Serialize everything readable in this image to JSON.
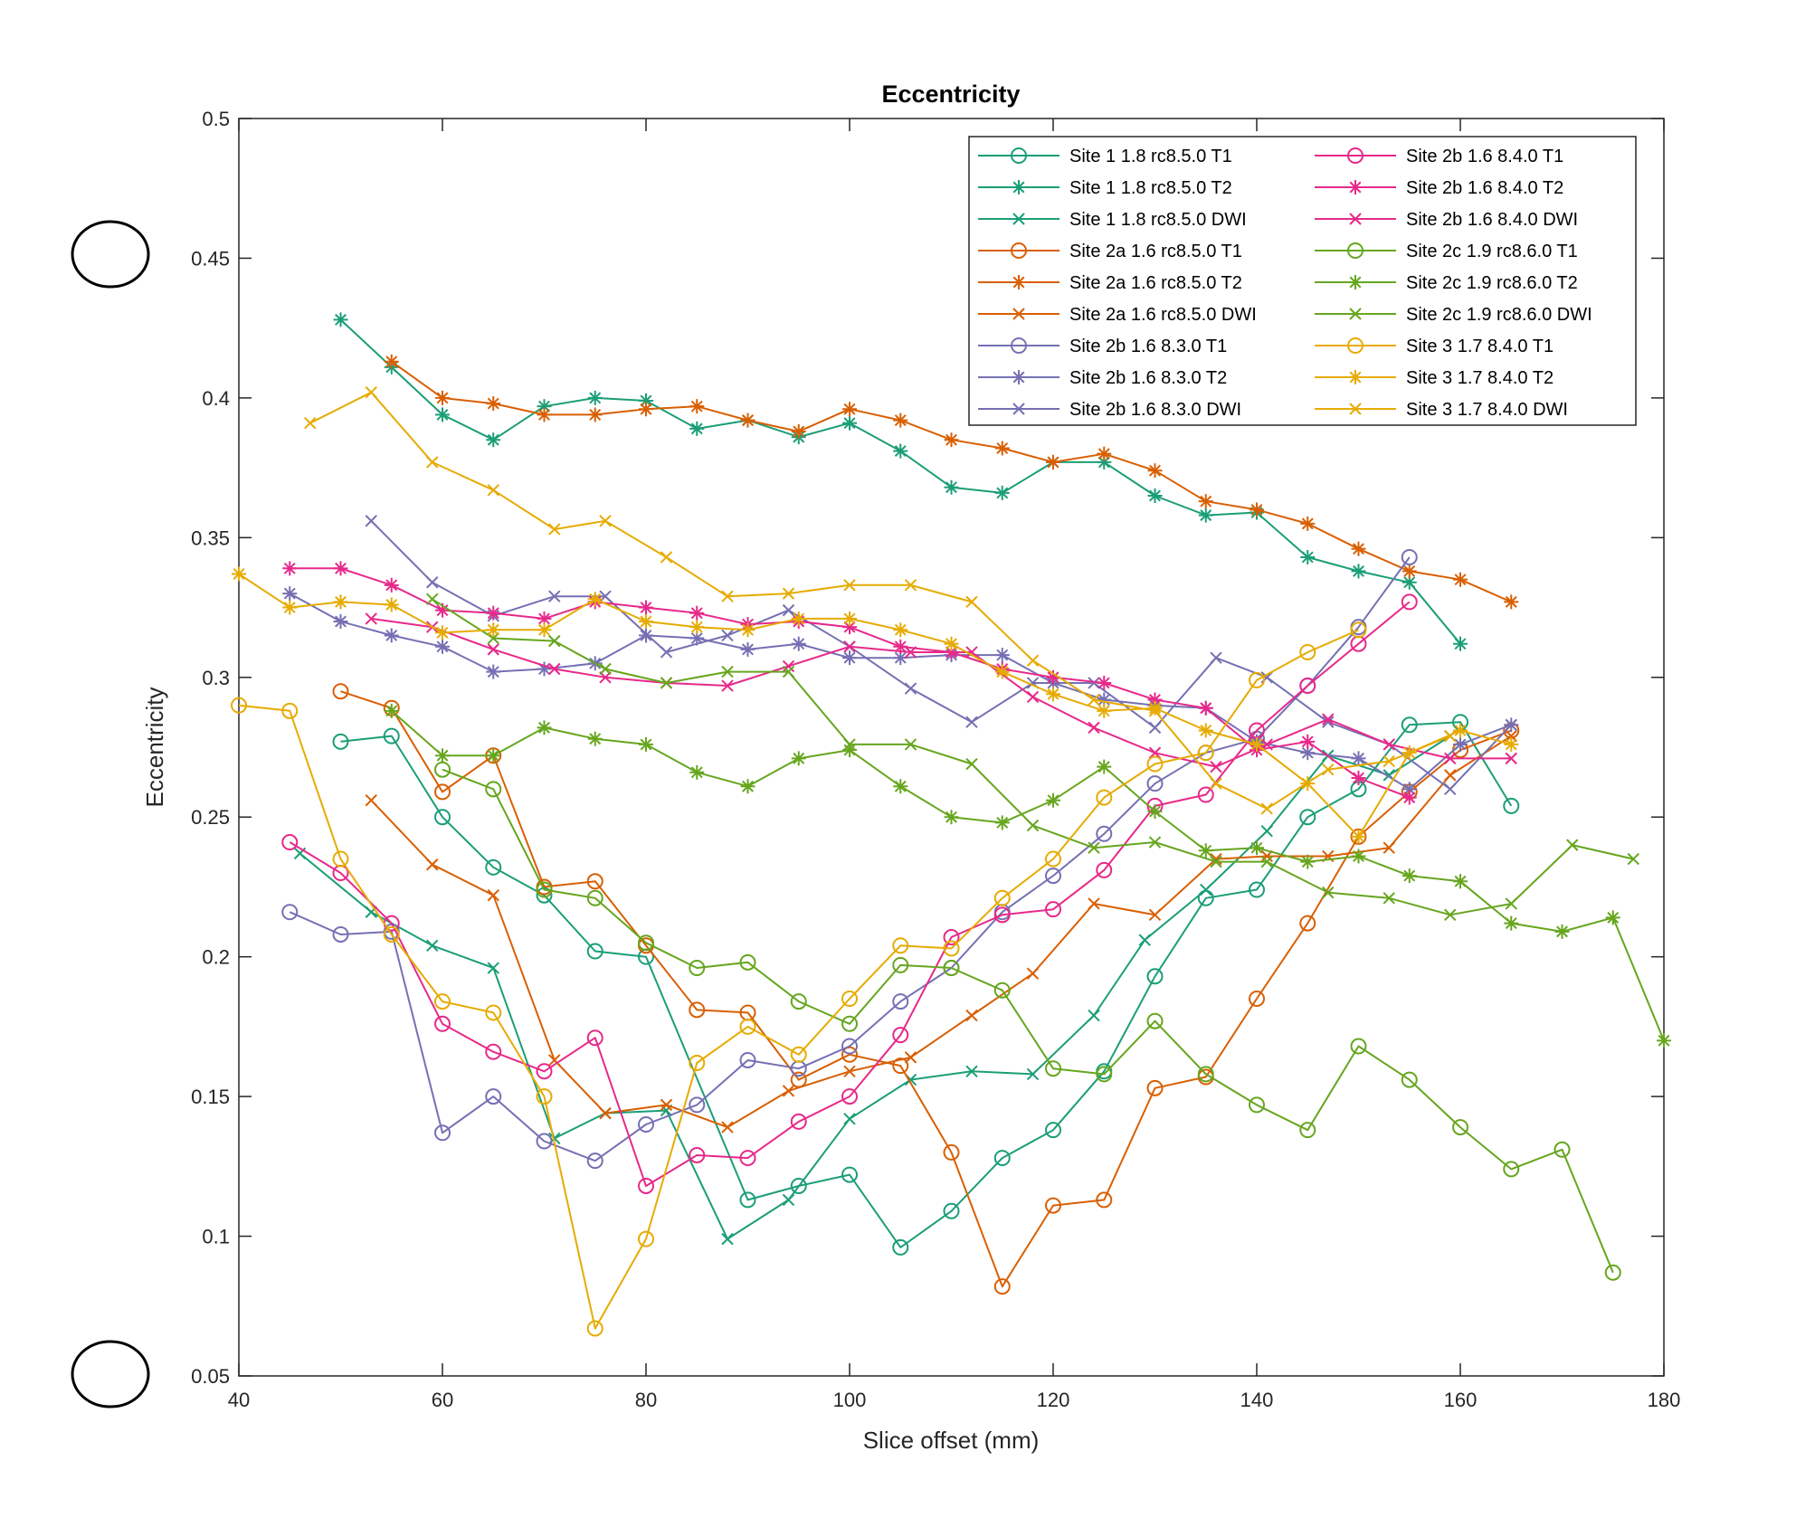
{
  "chart_data": {
    "type": "line",
    "title": "Eccentricity",
    "xlabel": "Slice offset (mm)",
    "ylabel": "Eccentricity",
    "xlim": [
      40,
      180
    ],
    "ylim": [
      0.05,
      0.5
    ],
    "xticks": [
      40,
      60,
      80,
      100,
      120,
      140,
      160,
      180
    ],
    "yticks": [
      0.05,
      0.1,
      0.15,
      0.2,
      0.25,
      0.3,
      0.35,
      0.4,
      0.45,
      0.5
    ],
    "xtick_labels": [
      "40",
      "60",
      "80",
      "100",
      "120",
      "140",
      "160",
      "180"
    ],
    "ytick_labels": [
      "0.05",
      "0.1",
      "0.15",
      "0.2",
      "0.25",
      "0.3",
      "0.35",
      "0.4",
      "0.45",
      "0.5"
    ],
    "grid": false,
    "legend_position": "top-right",
    "series": [
      {
        "name": "Site 1 1.8 rc8.5.0 T1",
        "color": "#1b9e77",
        "marker": "o",
        "x": [
          50,
          55,
          60,
          65,
          70,
          75,
          80,
          90,
          95,
          100,
          105,
          110,
          115,
          120,
          125,
          130,
          135,
          140,
          145,
          150,
          155,
          160,
          165
        ],
        "y": [
          0.277,
          0.279,
          0.25,
          0.232,
          0.222,
          0.202,
          0.2,
          0.113,
          0.118,
          0.122,
          0.096,
          0.109,
          0.128,
          0.138,
          0.159,
          0.193,
          0.221,
          0.224,
          0.25,
          0.26,
          0.283,
          0.284,
          0.254
        ]
      },
      {
        "name": "Site 1 1.8 rc8.5.0 T2",
        "color": "#1b9e77",
        "marker": "*",
        "x": [
          50,
          55,
          60,
          65,
          70,
          75,
          80,
          85,
          90,
          95,
          100,
          105,
          110,
          115,
          120,
          125,
          130,
          135,
          140,
          145,
          150,
          155,
          160
        ],
        "y": [
          0.428,
          0.411,
          0.394,
          0.385,
          0.397,
          0.4,
          0.399,
          0.389,
          0.392,
          0.386,
          0.391,
          0.381,
          0.368,
          0.366,
          0.377,
          0.377,
          0.365,
          0.358,
          0.359,
          0.343,
          0.338,
          0.334,
          0.312
        ]
      },
      {
        "name": "Site 1 1.8 rc8.5.0 DWI",
        "color": "#1b9e77",
        "marker": "x",
        "x": [
          46,
          53,
          59,
          65,
          71,
          76,
          82,
          88,
          94,
          100,
          106,
          112,
          118,
          124,
          129,
          135,
          141,
          147,
          153,
          159
        ],
        "y": [
          0.237,
          0.216,
          0.204,
          0.196,
          0.135,
          0.144,
          0.145,
          0.099,
          0.113,
          0.142,
          0.156,
          0.159,
          0.158,
          0.179,
          0.206,
          0.224,
          0.245,
          0.272,
          0.265,
          0.279
        ]
      },
      {
        "name": "Site 2a 1.6 rc8.5.0 T1",
        "color": "#d95f02",
        "marker": "o",
        "x": [
          50,
          55,
          60,
          65,
          70,
          75,
          80,
          85,
          90,
          95,
          100,
          105,
          110,
          115,
          120,
          125,
          130,
          135,
          140,
          145,
          150,
          155,
          160,
          165
        ],
        "y": [
          0.295,
          0.289,
          0.259,
          0.272,
          0.225,
          0.227,
          0.204,
          0.181,
          0.18,
          0.156,
          0.165,
          0.161,
          0.13,
          0.082,
          0.111,
          0.113,
          0.153,
          0.157,
          0.185,
          0.212,
          0.243,
          0.259,
          0.274,
          0.281
        ]
      },
      {
        "name": "Site 2a 1.6 rc8.5.0 T2",
        "color": "#d95f02",
        "marker": "*",
        "x": [
          55,
          60,
          65,
          70,
          75,
          80,
          85,
          90,
          95,
          100,
          105,
          110,
          115,
          120,
          125,
          130,
          135,
          140,
          145,
          150,
          155,
          160,
          165
        ],
        "y": [
          0.413,
          0.4,
          0.398,
          0.394,
          0.394,
          0.396,
          0.397,
          0.392,
          0.388,
          0.396,
          0.392,
          0.385,
          0.382,
          0.377,
          0.38,
          0.374,
          0.363,
          0.36,
          0.355,
          0.346,
          0.338,
          0.335,
          0.327
        ]
      },
      {
        "name": "Site 2a 1.6 rc8.5.0 DWI",
        "color": "#d95f02",
        "marker": "x",
        "x": [
          53,
          59,
          65,
          71,
          76,
          82,
          88,
          94,
          100,
          106,
          112,
          118,
          124,
          130,
          136,
          141,
          147,
          153,
          159,
          165
        ],
        "y": [
          0.256,
          0.233,
          0.222,
          0.163,
          0.144,
          0.147,
          0.139,
          0.152,
          0.159,
          0.164,
          0.179,
          0.194,
          0.219,
          0.215,
          0.235,
          0.236,
          0.236,
          0.239,
          0.265,
          0.279
        ]
      },
      {
        "name": "Site 2b 1.6 8.3.0 T1",
        "color": "#7570b3",
        "marker": "o",
        "x": [
          45,
          50,
          55,
          60,
          65,
          70,
          75,
          80,
          85,
          90,
          95,
          100,
          105,
          110,
          115,
          120,
          125,
          130,
          135,
          140,
          145,
          150,
          155
        ],
        "y": [
          0.216,
          0.208,
          0.209,
          0.137,
          0.15,
          0.134,
          0.127,
          0.14,
          0.147,
          0.163,
          0.16,
          0.168,
          0.184,
          0.196,
          0.216,
          0.229,
          0.244,
          0.262,
          0.273,
          0.278,
          0.297,
          0.318,
          0.343
        ]
      },
      {
        "name": "Site 2b 1.6 8.3.0 T2",
        "color": "#7570b3",
        "marker": "*",
        "x": [
          45,
          50,
          55,
          60,
          65,
          70,
          75,
          80,
          85,
          90,
          95,
          100,
          105,
          110,
          115,
          120,
          125,
          130,
          135,
          140,
          145,
          150,
          155,
          160,
          165
        ],
        "y": [
          0.33,
          0.32,
          0.315,
          0.311,
          0.302,
          0.303,
          0.305,
          0.315,
          0.314,
          0.31,
          0.312,
          0.307,
          0.307,
          0.308,
          0.308,
          0.298,
          0.292,
          0.29,
          0.289,
          0.277,
          0.273,
          0.271,
          0.26,
          0.276,
          0.283
        ]
      },
      {
        "name": "Site 2b 1.6 8.3.0 DWI",
        "color": "#7570b3",
        "marker": "x",
        "x": [
          53,
          59,
          65,
          71,
          76,
          82,
          88,
          94,
          100,
          106,
          112,
          118,
          124,
          130,
          136,
          141,
          147,
          153,
          159,
          165
        ],
        "y": [
          0.356,
          0.334,
          0.322,
          0.329,
          0.329,
          0.309,
          0.315,
          0.324,
          0.311,
          0.296,
          0.284,
          0.298,
          0.298,
          0.282,
          0.307,
          0.3,
          0.284,
          0.276,
          0.26,
          0.283
        ]
      },
      {
        "name": "Site 2b 1.6 8.4.0 T1",
        "color": "#e7298a",
        "marker": "o",
        "x": [
          45,
          50,
          55,
          60,
          65,
          70,
          75,
          80,
          85,
          90,
          95,
          100,
          105,
          110,
          115,
          120,
          125,
          130,
          135,
          140,
          145,
          150,
          155
        ],
        "y": [
          0.241,
          0.23,
          0.212,
          0.176,
          0.166,
          0.159,
          0.171,
          0.118,
          0.129,
          0.128,
          0.141,
          0.15,
          0.172,
          0.207,
          0.215,
          0.217,
          0.231,
          0.254,
          0.258,
          0.281,
          0.297,
          0.312,
          0.327
        ]
      },
      {
        "name": "Site 2b 1.6 8.4.0 T2",
        "color": "#e7298a",
        "marker": "*",
        "x": [
          45,
          50,
          55,
          60,
          65,
          70,
          75,
          80,
          85,
          90,
          95,
          100,
          105,
          110,
          115,
          120,
          125,
          130,
          135,
          140,
          145,
          150,
          155
        ],
        "y": [
          0.339,
          0.339,
          0.333,
          0.324,
          0.323,
          0.321,
          0.327,
          0.325,
          0.323,
          0.319,
          0.32,
          0.318,
          0.311,
          0.309,
          0.303,
          0.3,
          0.298,
          0.292,
          0.289,
          0.274,
          0.277,
          0.264,
          0.257
        ]
      },
      {
        "name": "Site 2b 1.6 8.4.0 DWI",
        "color": "#e7298a",
        "marker": "x",
        "x": [
          53,
          59,
          65,
          71,
          76,
          82,
          88,
          94,
          100,
          106,
          112,
          118,
          124,
          130,
          136,
          141,
          147,
          153,
          159,
          165
        ],
        "y": [
          0.321,
          0.318,
          0.31,
          0.303,
          0.3,
          0.298,
          0.297,
          0.304,
          0.311,
          0.309,
          0.309,
          0.293,
          0.282,
          0.273,
          0.268,
          0.276,
          0.285,
          0.276,
          0.271,
          0.271
        ]
      },
      {
        "name": "Site 2c 1.9 rc8.6.0 T1",
        "color": "#66a61e",
        "marker": "o",
        "x": [
          60,
          65,
          70,
          75,
          80,
          85,
          90,
          95,
          100,
          105,
          110,
          115,
          120,
          125,
          130,
          135,
          140,
          145,
          150,
          155,
          160,
          165,
          170,
          175
        ],
        "y": [
          0.267,
          0.26,
          0.224,
          0.221,
          0.205,
          0.196,
          0.198,
          0.184,
          0.176,
          0.197,
          0.196,
          0.188,
          0.16,
          0.158,
          0.177,
          0.158,
          0.147,
          0.138,
          0.168,
          0.156,
          0.139,
          0.124,
          0.131,
          0.087
        ]
      },
      {
        "name": "Site 2c 1.9 rc8.6.0 T2",
        "color": "#66a61e",
        "marker": "*",
        "x": [
          55,
          60,
          65,
          70,
          75,
          80,
          85,
          90,
          95,
          100,
          105,
          110,
          115,
          120,
          125,
          130,
          135,
          140,
          145,
          150,
          155,
          160,
          165,
          170,
          175,
          180
        ],
        "y": [
          0.288,
          0.272,
          0.272,
          0.282,
          0.278,
          0.276,
          0.266,
          0.261,
          0.271,
          0.274,
          0.261,
          0.25,
          0.248,
          0.256,
          0.268,
          0.252,
          0.238,
          0.239,
          0.234,
          0.236,
          0.229,
          0.227,
          0.212,
          0.209,
          0.214,
          0.17
        ]
      },
      {
        "name": "Site 2c 1.9 rc8.6.0 DWI",
        "color": "#66a61e",
        "marker": "x",
        "x": [
          59,
          65,
          71,
          76,
          82,
          88,
          94,
          100,
          106,
          112,
          118,
          124,
          130,
          136,
          141,
          147,
          153,
          159,
          165,
          171,
          177
        ],
        "y": [
          0.328,
          0.314,
          0.313,
          0.303,
          0.298,
          0.302,
          0.302,
          0.276,
          0.276,
          0.269,
          0.247,
          0.239,
          0.241,
          0.234,
          0.234,
          0.223,
          0.221,
          0.215,
          0.219,
          0.24,
          0.235
        ]
      },
      {
        "name": "Site 3 1.7 8.4.0 T1",
        "color": "#e6ab02",
        "marker": "o",
        "x": [
          40,
          45,
          50,
          55,
          60,
          65,
          70,
          75,
          80,
          85,
          90,
          95,
          100,
          105,
          110,
          115,
          120,
          125,
          130,
          135,
          140,
          145,
          150
        ],
        "y": [
          0.29,
          0.288,
          0.235,
          0.208,
          0.184,
          0.18,
          0.15,
          0.067,
          0.099,
          0.162,
          0.175,
          0.165,
          0.185,
          0.204,
          0.203,
          0.221,
          0.235,
          0.257,
          0.269,
          0.273,
          0.299,
          0.309,
          0.317
        ]
      },
      {
        "name": "Site 3 1.7 8.4.0 T2",
        "color": "#e6ab02",
        "marker": "*",
        "x": [
          40,
          45,
          50,
          55,
          60,
          65,
          70,
          75,
          80,
          85,
          90,
          95,
          100,
          105,
          110,
          115,
          120,
          125,
          130,
          135,
          140,
          145,
          150,
          155,
          160,
          165
        ],
        "y": [
          0.337,
          0.325,
          0.327,
          0.326,
          0.316,
          0.317,
          0.317,
          0.328,
          0.32,
          0.318,
          0.317,
          0.321,
          0.321,
          0.317,
          0.312,
          0.302,
          0.294,
          0.288,
          0.289,
          0.281,
          0.276,
          0.262,
          0.243,
          0.273,
          0.281,
          0.276
        ]
      },
      {
        "name": "Site 3 1.7 8.4.0 DWI",
        "color": "#e6ab02",
        "marker": "x",
        "x": [
          47,
          53,
          59,
          65,
          71,
          76,
          82,
          88,
          94,
          100,
          106,
          112,
          118,
          124,
          130,
          136,
          141,
          147,
          153,
          159
        ],
        "y": [
          0.391,
          0.402,
          0.377,
          0.367,
          0.353,
          0.356,
          0.343,
          0.329,
          0.33,
          0.333,
          0.333,
          0.327,
          0.306,
          0.292,
          0.288,
          0.262,
          0.253,
          0.267,
          0.27,
          0.279
        ]
      }
    ]
  }
}
